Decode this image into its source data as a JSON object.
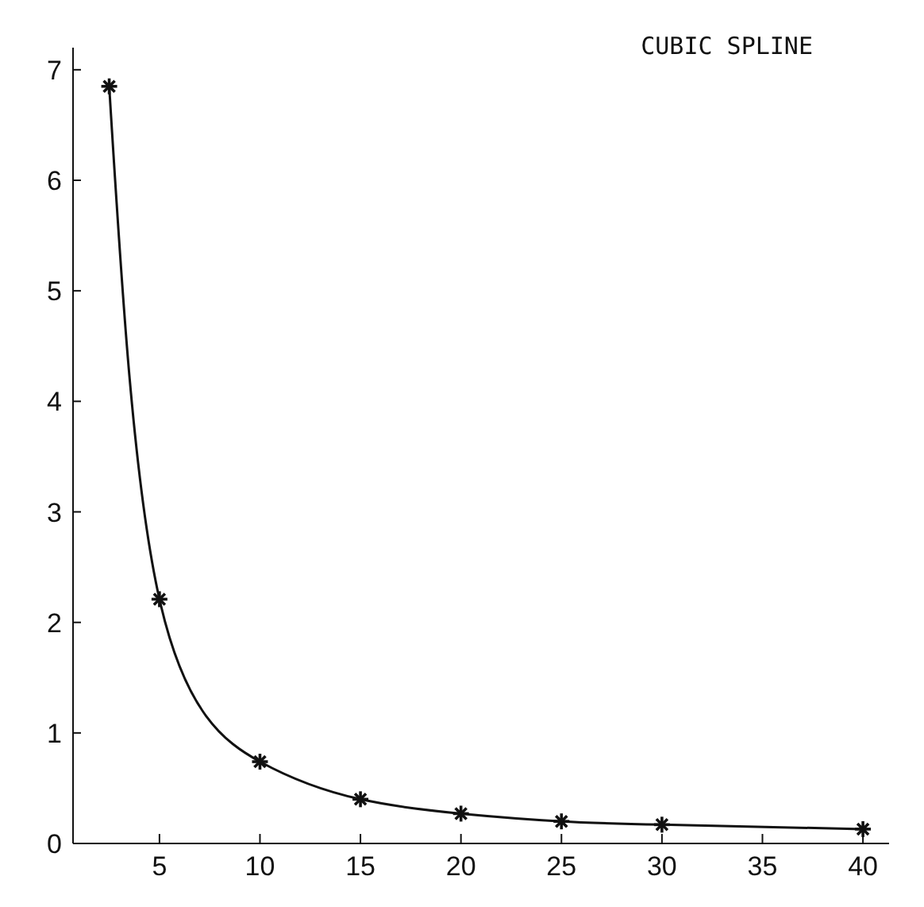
{
  "chart_data": {
    "type": "line",
    "title": "CUBIC SPLINE",
    "x": [
      2.5,
      5,
      10,
      15,
      20,
      25,
      30,
      40
    ],
    "series": [
      {
        "color": "#111111",
        "values": [
          6.85,
          2.21,
          0.74,
          0.4,
          0.27,
          0.2,
          0.17,
          0.13
        ]
      }
    ],
    "xlim": [
      0.7,
      41.3
    ],
    "xticks": [
      5,
      10,
      15,
      20,
      25,
      30,
      35,
      40
    ],
    "ylim": [
      0,
      7.2
    ],
    "yticks": [
      0,
      1,
      2,
      3,
      4,
      5,
      6,
      7
    ],
    "marker": "cross",
    "line_style": "solid"
  }
}
